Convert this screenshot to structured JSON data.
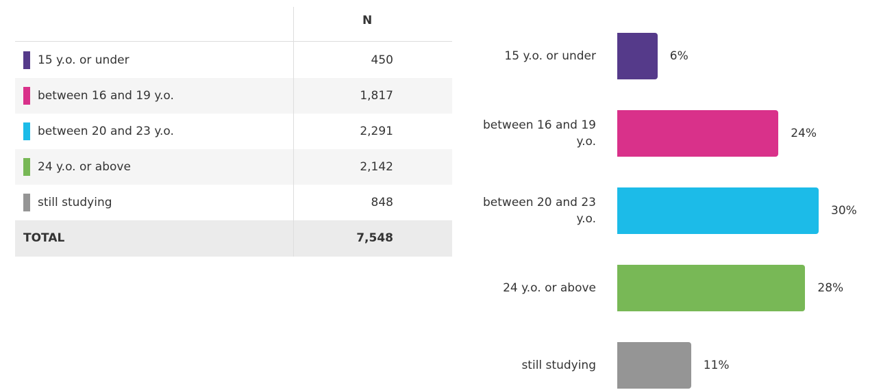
{
  "table": {
    "header": "N",
    "rows": [
      {
        "label": "15 y.o. or under",
        "value": "450"
      },
      {
        "label": "between 16 and 19 y.o.",
        "value": "1,817"
      },
      {
        "label": "between 20 and 23 y.o.",
        "value": "2,291"
      },
      {
        "label": "24 y.o. or above",
        "value": "2,142"
      },
      {
        "label": "still studying",
        "value": "848"
      }
    ],
    "total": {
      "label": "TOTAL",
      "value": "7,548"
    }
  },
  "chart_data": {
    "type": "bar",
    "orientation": "horizontal",
    "categories": [
      "15 y.o. or under",
      "between 16 and 19 y.o.",
      "between 20 and 23 y.o.",
      "24 y.o. or above",
      "still studying"
    ],
    "values": [
      6,
      24,
      30,
      28,
      11
    ],
    "value_labels": [
      "6%",
      "24%",
      "30%",
      "28%",
      "11%"
    ],
    "colors": [
      "#553a8a",
      "#d9318a",
      "#1cbbe8",
      "#78b856",
      "#959595"
    ]
  }
}
